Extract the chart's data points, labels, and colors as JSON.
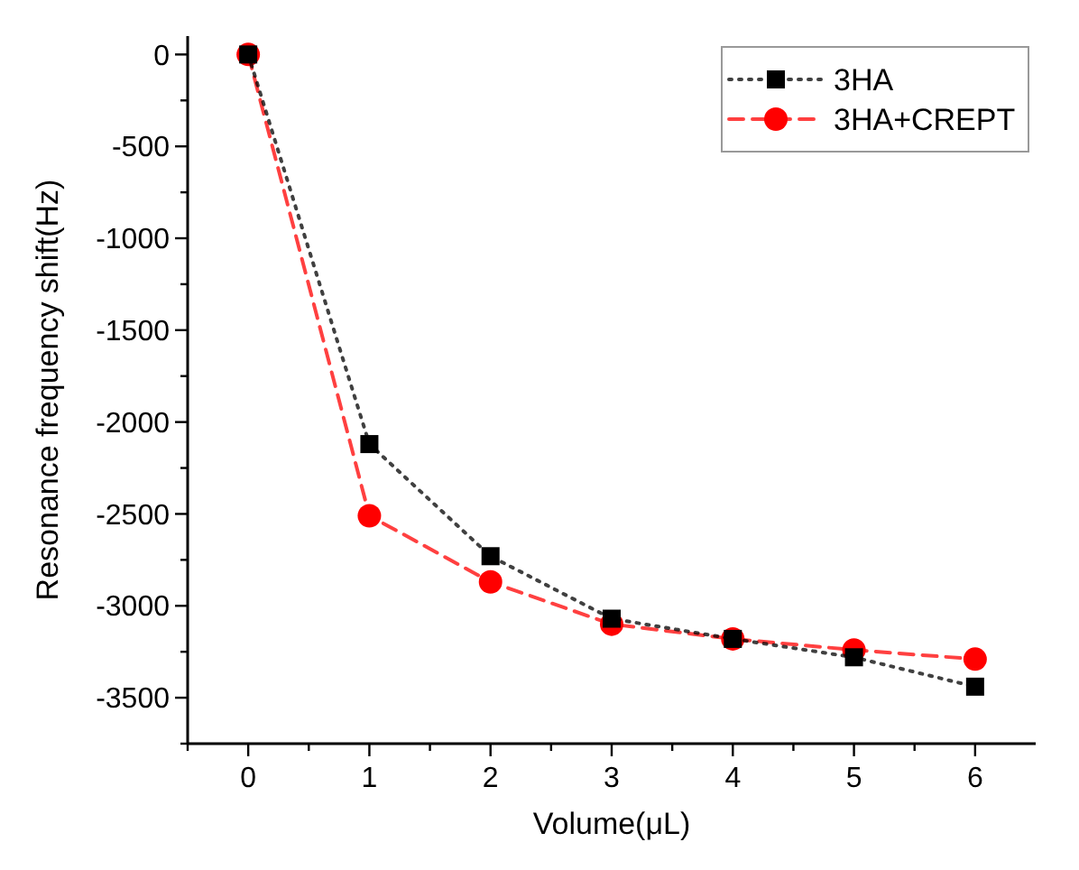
{
  "chart_data": {
    "type": "line",
    "xlabel": "Volume(μL)",
    "ylabel": "Resonance frequency shift(Hz)",
    "x": [
      0,
      1,
      2,
      3,
      4,
      5,
      6
    ],
    "series": [
      {
        "name": "3HA",
        "color": "#000000",
        "marker": "square",
        "line_style": "dotted",
        "values": [
          0,
          -2120,
          -2730,
          -3070,
          -3180,
          -3280,
          -3440
        ]
      },
      {
        "name": "3HA+CREPT",
        "color": "#ff0000",
        "marker": "circle",
        "line_style": "dashed",
        "values": [
          0,
          -2510,
          -2870,
          -3100,
          -3180,
          -3240,
          -3290
        ]
      }
    ],
    "xlim": [
      -0.5,
      6.5
    ],
    "xticks": [
      {
        "value": -0.5,
        "label": null
      },
      0,
      {
        "value": 0.5,
        "label": null
      },
      1,
      {
        "value": 1.5,
        "label": null
      },
      2,
      {
        "value": 2.5,
        "label": null
      },
      3,
      {
        "value": 3.5,
        "label": null
      },
      4,
      {
        "value": 4.5,
        "label": null
      },
      5,
      {
        "value": 5.5,
        "label": null
      },
      6
    ],
    "ylim": [
      -3750,
      100
    ],
    "yticks": [
      {
        "value": -3750,
        "label": null
      },
      -3500,
      {
        "value": -3250,
        "label": null
      },
      -3000,
      {
        "value": -2750,
        "label": null
      },
      -2500,
      {
        "value": -2250,
        "label": null
      },
      -2000,
      {
        "value": -1750,
        "label": null
      },
      -1500,
      {
        "value": -1250,
        "label": null
      },
      -1000,
      {
        "value": -750,
        "label": null
      },
      -500,
      {
        "value": -250,
        "label": null
      },
      0
    ],
    "grid": false,
    "legend": "top right"
  }
}
